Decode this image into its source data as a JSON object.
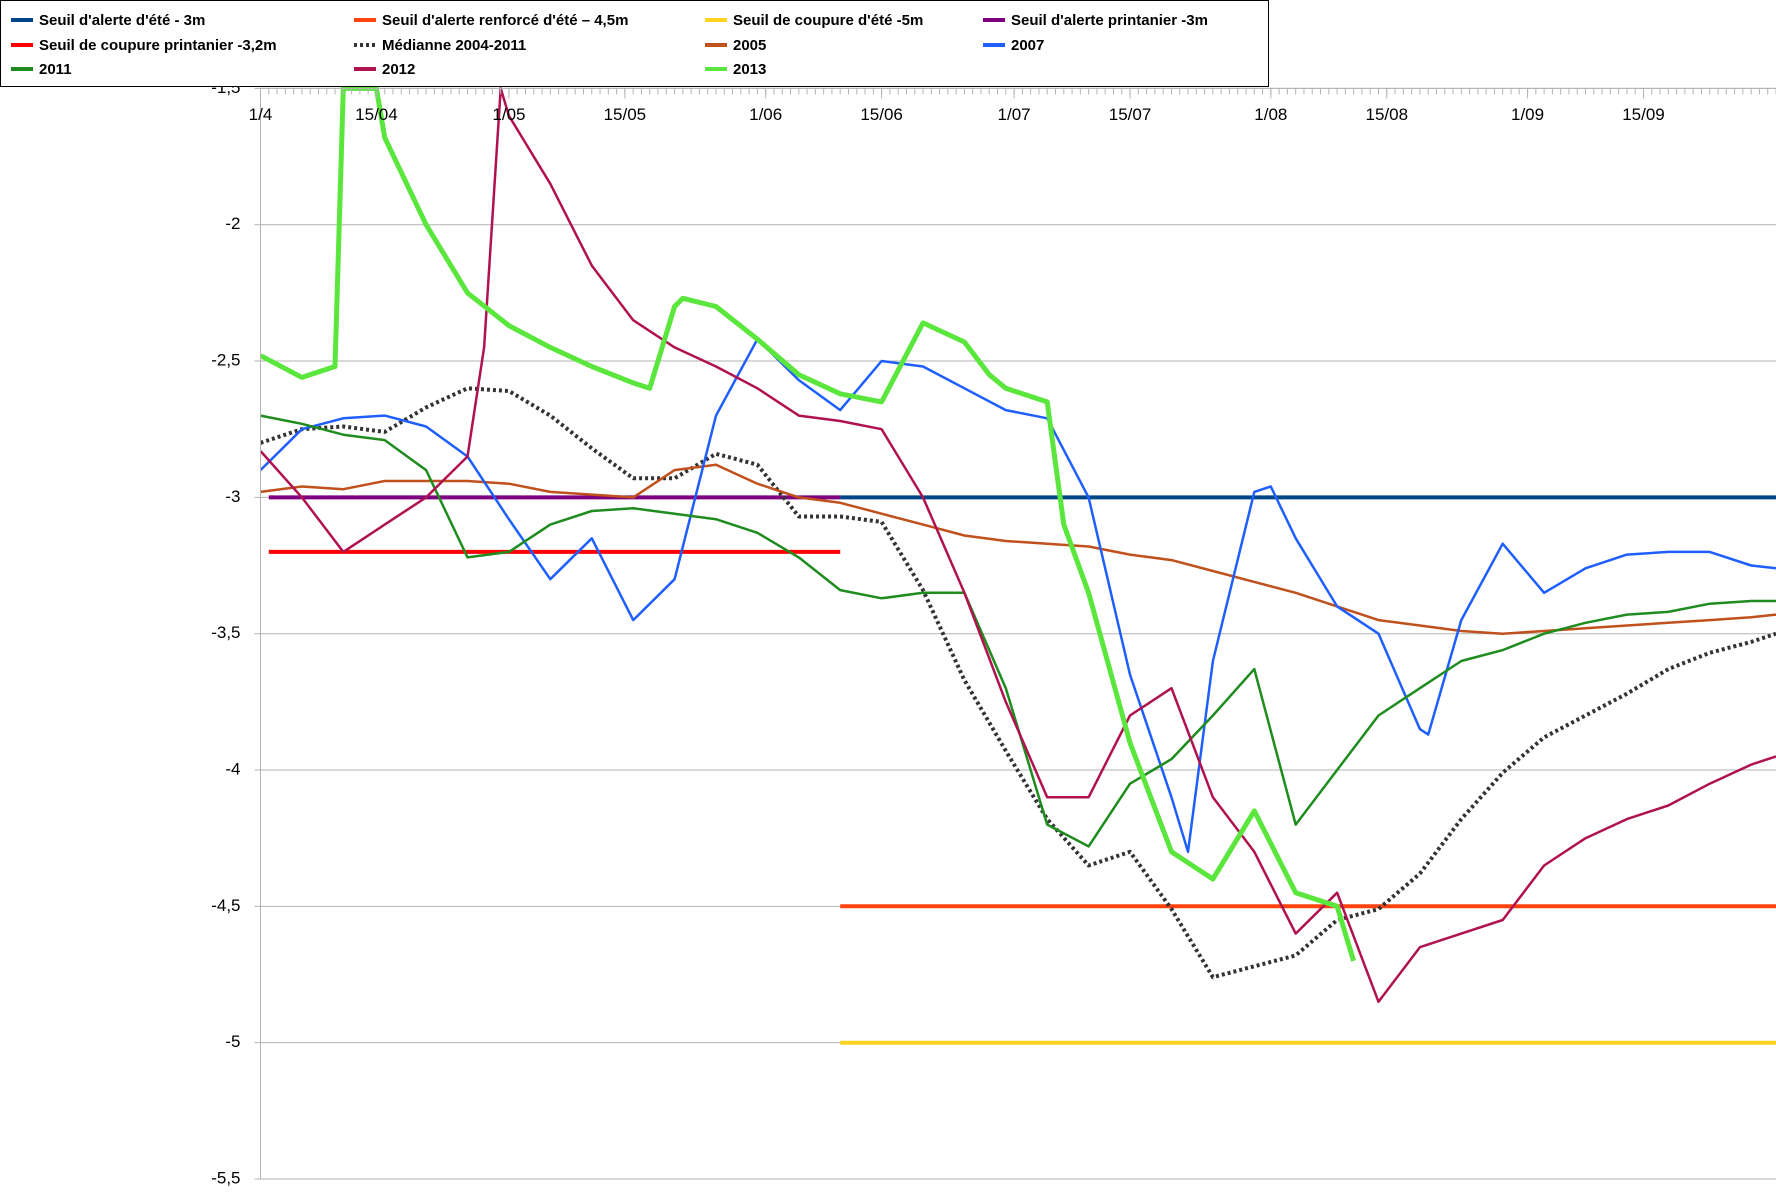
{
  "chart_data": {
    "type": "line",
    "xlim": [
      0,
      183
    ],
    "ylim": [
      -5.5,
      -1.5
    ],
    "xticks": [
      {
        "value": 0,
        "label": "1/4"
      },
      {
        "value": 14,
        "label": "15/04"
      },
      {
        "value": 30,
        "label": "1/05"
      },
      {
        "value": 44,
        "label": "15/05"
      },
      {
        "value": 61,
        "label": "1/06"
      },
      {
        "value": 75,
        "label": "15/06"
      },
      {
        "value": 91,
        "label": "1/07"
      },
      {
        "value": 105,
        "label": "15/07"
      },
      {
        "value": 122,
        "label": "1/08"
      },
      {
        "value": 136,
        "label": "15/08"
      },
      {
        "value": 153,
        "label": "1/09"
      },
      {
        "value": 167,
        "label": "15/09"
      }
    ],
    "yticks": [
      {
        "value": -1.5,
        "label": "-1,5"
      },
      -2,
      {
        "value": -2.5,
        "label": "-2,5"
      },
      -3,
      {
        "value": -3.5,
        "label": "-3,5"
      },
      -4,
      {
        "value": -4.5,
        "label": "-4,5"
      },
      -5,
      {
        "value": -5.5,
        "label": "-5,5"
      }
    ],
    "grid": true,
    "legend": "top",
    "series": [
      {
        "name": "Seuil d'alerte d'été - 3m",
        "color": "#004586",
        "width": 4,
        "x": [
          70,
          183
        ],
        "values": [
          -3,
          -3
        ]
      },
      {
        "name": "Seuil d'alerte renforcé d'été – 4,5m",
        "color": "#ff420e",
        "width": 4,
        "x": [
          70,
          183
        ],
        "values": [
          -4.5,
          -4.5
        ]
      },
      {
        "name": "Seuil de coupure d'été -5m",
        "color": "#ffd320",
        "width": 4,
        "x": [
          70,
          183
        ],
        "values": [
          -5,
          -5
        ]
      },
      {
        "name": "Seuil d'alerte printanier -3m",
        "color": "#7e0080",
        "width": 4,
        "x": [
          1,
          70
        ],
        "values": [
          -3,
          -3
        ]
      },
      {
        "name": "Seuil de coupure printanier -3,2m",
        "color": "#ff0000",
        "width": 4,
        "x": [
          1,
          70
        ],
        "values": [
          -3.2,
          -3.2
        ]
      },
      {
        "name": "Médianne 2004-2011",
        "color": "#333333",
        "width": 4,
        "dashed": true,
        "x": [
          0,
          5,
          10,
          15,
          20,
          25,
          30,
          35,
          40,
          45,
          50,
          55,
          60,
          65,
          70,
          75,
          80,
          85,
          90,
          95,
          100,
          105,
          110,
          115,
          120,
          125,
          130,
          135,
          140,
          145,
          150,
          155,
          160,
          165,
          170,
          175,
          180,
          183
        ],
        "values": [
          -2.8,
          -2.75,
          -2.74,
          -2.76,
          -2.67,
          -2.6,
          -2.61,
          -2.7,
          -2.82,
          -2.93,
          -2.93,
          -2.84,
          -2.88,
          -3.07,
          -3.07,
          -3.09,
          -3.34,
          -3.67,
          -3.93,
          -4.18,
          -4.35,
          -4.3,
          -4.51,
          -4.76,
          -4.72,
          -4.68,
          -4.55,
          -4.51,
          -4.38,
          -4.18,
          -4.01,
          -3.88,
          -3.8,
          -3.72,
          -3.63,
          -3.57,
          -3.53,
          -3.5
        ]
      },
      {
        "name": "2005",
        "color": "#c0501c",
        "width": 2.5,
        "x": [
          0,
          5,
          10,
          15,
          20,
          25,
          30,
          35,
          40,
          45,
          50,
          55,
          60,
          65,
          70,
          75,
          80,
          85,
          90,
          95,
          100,
          105,
          110,
          115,
          120,
          125,
          130,
          135,
          140,
          145,
          150,
          155,
          160,
          165,
          170,
          175,
          180,
          183
        ],
        "values": [
          -2.98,
          -2.96,
          -2.97,
          -2.94,
          -2.94,
          -2.94,
          -2.95,
          -2.98,
          -2.99,
          -3.0,
          -2.9,
          -2.88,
          -2.95,
          -3.0,
          -3.02,
          -3.06,
          -3.1,
          -3.14,
          -3.16,
          -3.17,
          -3.18,
          -3.21,
          -3.23,
          -3.27,
          -3.31,
          -3.35,
          -3.4,
          -3.45,
          -3.47,
          -3.49,
          -3.5,
          -3.49,
          -3.48,
          -3.47,
          -3.46,
          -3.45,
          -3.44,
          -3.43
        ]
      },
      {
        "name": "2007",
        "color": "#1f5fff",
        "width": 2.5,
        "x": [
          0,
          5,
          10,
          15,
          20,
          25,
          30,
          35,
          40,
          45,
          50,
          55,
          60,
          65,
          70,
          75,
          80,
          85,
          90,
          95,
          100,
          105,
          110,
          112,
          115,
          120,
          122,
          125,
          130,
          135,
          140,
          141,
          145,
          150,
          155,
          160,
          165,
          170,
          175,
          180,
          183
        ],
        "values": [
          -2.9,
          -2.75,
          -2.71,
          -2.7,
          -2.74,
          -2.85,
          -3.08,
          -3.3,
          -3.15,
          -3.45,
          -3.3,
          -2.7,
          -2.42,
          -2.57,
          -2.68,
          -2.5,
          -2.52,
          -2.6,
          -2.68,
          -2.71,
          -3.0,
          -3.65,
          -4.1,
          -4.3,
          -3.6,
          -2.98,
          -2.96,
          -3.15,
          -3.4,
          -3.5,
          -3.85,
          -3.87,
          -3.45,
          -3.17,
          -3.35,
          -3.26,
          -3.21,
          -3.2,
          -3.2,
          -3.25,
          -3.26
        ]
      },
      {
        "name": "2011",
        "color": "#1e8c1e",
        "width": 2.5,
        "x": [
          0,
          5,
          10,
          15,
          20,
          25,
          30,
          35,
          40,
          45,
          50,
          55,
          60,
          65,
          70,
          75,
          80,
          85,
          90,
          95,
          100,
          105,
          110,
          115,
          120,
          125,
          130,
          135,
          140,
          145,
          150,
          155,
          160,
          165,
          170,
          175,
          180,
          183
        ],
        "values": [
          -2.7,
          -2.73,
          -2.77,
          -2.79,
          -2.9,
          -3.22,
          -3.2,
          -3.1,
          -3.05,
          -3.04,
          -3.06,
          -3.08,
          -3.13,
          -3.22,
          -3.34,
          -3.37,
          -3.35,
          -3.35,
          -3.7,
          -4.2,
          -4.28,
          -4.05,
          -3.96,
          -3.8,
          -3.63,
          -4.2,
          -4.0,
          -3.8,
          -3.7,
          -3.6,
          -3.56,
          -3.5,
          -3.46,
          -3.43,
          -3.42,
          -3.39,
          -3.38,
          -3.38
        ]
      },
      {
        "name": "2012",
        "color": "#b0124f",
        "width": 2.5,
        "x": [
          0,
          5,
          10,
          15,
          20,
          25,
          27,
          29,
          30,
          35,
          40,
          45,
          50,
          55,
          60,
          65,
          70,
          75,
          80,
          85,
          90,
          95,
          100,
          105,
          110,
          115,
          120,
          125,
          130,
          135,
          140,
          145,
          150,
          155,
          160,
          165,
          170,
          175,
          180,
          183
        ],
        "values": [
          -2.83,
          -3.0,
          -3.2,
          -3.1,
          -3.0,
          -2.85,
          -2.45,
          -1.5,
          -1.6,
          -1.85,
          -2.15,
          -2.35,
          -2.45,
          -2.52,
          -2.6,
          -2.7,
          -2.72,
          -2.75,
          -3.0,
          -3.35,
          -3.75,
          -4.1,
          -4.1,
          -3.8,
          -3.7,
          -4.1,
          -4.3,
          -4.6,
          -4.45,
          -4.85,
          -4.65,
          -4.6,
          -4.55,
          -4.35,
          -4.25,
          -4.18,
          -4.13,
          -4.05,
          -3.98,
          -3.95
        ]
      },
      {
        "name": "2013",
        "color": "#5ae63c",
        "width": 5,
        "x": [
          0,
          5,
          9,
          10,
          14,
          15,
          20,
          25,
          30,
          35,
          40,
          45,
          47,
          50,
          51,
          55,
          60,
          65,
          70,
          75,
          80,
          85,
          88,
          90,
          95,
          97,
          100,
          105,
          110,
          115,
          120,
          125,
          130,
          132
        ],
        "values": [
          -2.48,
          -2.56,
          -2.52,
          -1.5,
          -1.5,
          -1.68,
          -2.0,
          -2.25,
          -2.37,
          -2.45,
          -2.52,
          -2.58,
          -2.6,
          -2.3,
          -2.27,
          -2.3,
          -2.42,
          -2.55,
          -2.62,
          -2.65,
          -2.36,
          -2.43,
          -2.55,
          -2.6,
          -2.65,
          -3.1,
          -3.35,
          -3.9,
          -4.3,
          -4.4,
          -4.15,
          -4.45,
          -4.5,
          -4.7
        ]
      }
    ]
  }
}
